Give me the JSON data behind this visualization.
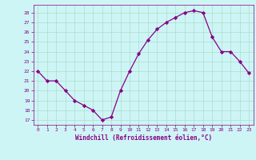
{
  "x": [
    0,
    1,
    2,
    3,
    4,
    5,
    6,
    7,
    8,
    9,
    10,
    11,
    12,
    13,
    14,
    15,
    16,
    17,
    18,
    19,
    20,
    21,
    22,
    23
  ],
  "y": [
    22,
    21,
    21,
    20,
    19,
    18.5,
    18,
    17,
    17.3,
    20,
    22,
    23.8,
    25.2,
    26.3,
    27,
    27.5,
    28,
    28.2,
    28,
    25.5,
    24,
    24,
    23,
    21.8
  ],
  "xlim": [
    -0.5,
    23.5
  ],
  "ylim": [
    16.5,
    28.8
  ],
  "yticks": [
    17,
    18,
    19,
    20,
    21,
    22,
    23,
    24,
    25,
    26,
    27,
    28
  ],
  "xticks": [
    0,
    1,
    2,
    3,
    4,
    5,
    6,
    7,
    8,
    9,
    10,
    11,
    12,
    13,
    14,
    15,
    16,
    17,
    18,
    19,
    20,
    21,
    22,
    23
  ],
  "xlabel": "Windchill (Refroidissement éolien,°C)",
  "line_color": "#880088",
  "marker_color": "#880088",
  "bg_color": "#cef5f5",
  "grid_color": "#aaddcc",
  "label_color": "#880088",
  "tick_color": "#880088",
  "spine_color": "#880088"
}
